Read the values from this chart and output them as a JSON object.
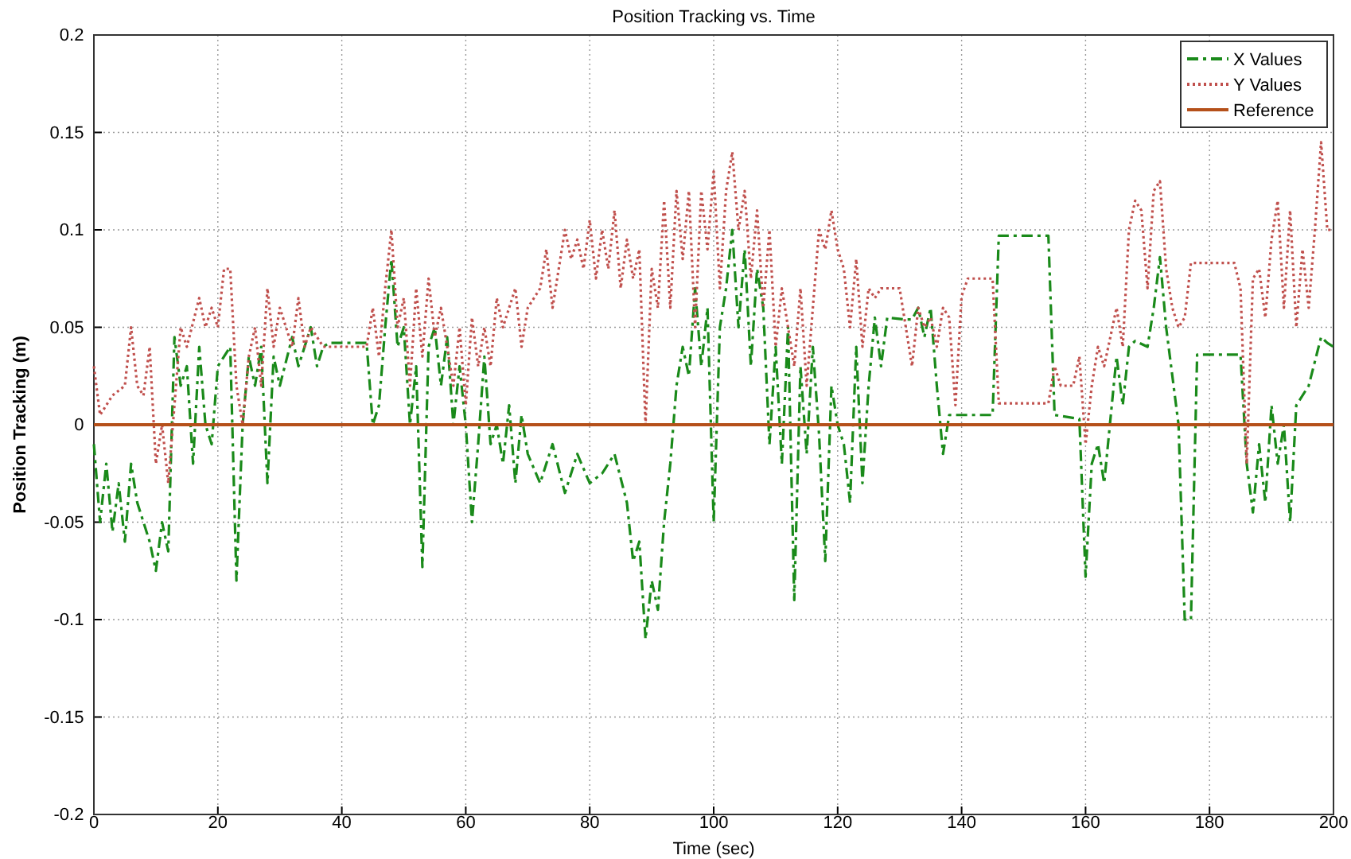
{
  "chart_data": {
    "type": "line",
    "title": "Position Tracking vs. Time",
    "xlabel": "Time (sec)",
    "ylabel": "Position Tracking (m)",
    "xlim": [
      0,
      200
    ],
    "ylim": [
      -0.2,
      0.2
    ],
    "xticks": [
      0,
      20,
      40,
      60,
      80,
      100,
      120,
      140,
      160,
      180,
      200
    ],
    "yticks": [
      -0.2,
      -0.15,
      -0.1,
      -0.05,
      0,
      0.05,
      0.1,
      0.15,
      0.2
    ],
    "grid": true,
    "legend": "top right",
    "series": [
      {
        "name": "X Values",
        "color": "#1a8a1a",
        "line_style": "dashed",
        "x": [
          0,
          1,
          2,
          3,
          4,
          5,
          6,
          7,
          8,
          9,
          10,
          11,
          12,
          13,
          14,
          15,
          16,
          17,
          18,
          19,
          20,
          22,
          23,
          24,
          25,
          26,
          27,
          28,
          29,
          30,
          32,
          33,
          35,
          36,
          37,
          38,
          44,
          45,
          46,
          47,
          48,
          49,
          50,
          51,
          52,
          53,
          54,
          55,
          56,
          57,
          58,
          59,
          60,
          61,
          62,
          63,
          64,
          65,
          66,
          67,
          68,
          69,
          70,
          72,
          74,
          76,
          78,
          80,
          82,
          84,
          86,
          87,
          88,
          89,
          90,
          91,
          92,
          93,
          94,
          95,
          96,
          97,
          98,
          99,
          100,
          101,
          102,
          103,
          104,
          105,
          106,
          107,
          108,
          109,
          110,
          111,
          112,
          113,
          114,
          115,
          116,
          117,
          118,
          119,
          120,
          121,
          122,
          123,
          124,
          125,
          126,
          127,
          128,
          131,
          132,
          133,
          134,
          135,
          136,
          137,
          138,
          139,
          145,
          146,
          154,
          155,
          159,
          160,
          161,
          162,
          163,
          165,
          166,
          167,
          168,
          170,
          171,
          172,
          173,
          175,
          176,
          177,
          178,
          185,
          186,
          187,
          188,
          189,
          190,
          191,
          192,
          193,
          194,
          196,
          198,
          199,
          200
        ],
        "values": [
          -0.01,
          -0.05,
          -0.02,
          -0.055,
          -0.03,
          -0.06,
          -0.02,
          -0.04,
          -0.05,
          -0.06,
          -0.075,
          -0.05,
          -0.065,
          0.045,
          0.02,
          0.03,
          -0.02,
          0.04,
          0.0,
          -0.01,
          0.03,
          0.04,
          -0.08,
          0.0,
          0.035,
          0.02,
          0.04,
          -0.03,
          0.035,
          0.02,
          0.045,
          0.03,
          0.05,
          0.03,
          0.04,
          0.042,
          0.042,
          0.0,
          0.01,
          0.05,
          0.085,
          0.04,
          0.05,
          0.0,
          0.03,
          -0.073,
          0.04,
          0.05,
          0.02,
          0.045,
          0.0,
          0.03,
          0.0,
          -0.05,
          -0.01,
          0.035,
          -0.01,
          0.0,
          -0.02,
          0.01,
          -0.03,
          0.005,
          -0.015,
          -0.03,
          -0.01,
          -0.035,
          -0.015,
          -0.03,
          -0.025,
          -0.015,
          -0.04,
          -0.07,
          -0.06,
          -0.11,
          -0.08,
          -0.095,
          -0.05,
          -0.02,
          0.02,
          0.04,
          0.025,
          0.07,
          0.03,
          0.06,
          -0.05,
          0.05,
          0.07,
          0.1,
          0.05,
          0.09,
          0.03,
          0.08,
          0.06,
          -0.01,
          0.04,
          -0.02,
          0.05,
          -0.09,
          0.03,
          -0.015,
          0.04,
          -0.005,
          -0.07,
          0.02,
          0.0,
          -0.01,
          -0.04,
          0.04,
          -0.03,
          0.02,
          0.055,
          0.03,
          0.055,
          0.054,
          0.054,
          0.06,
          0.045,
          0.06,
          0.02,
          -0.015,
          0.005,
          0.005,
          0.005,
          0.097,
          0.097,
          0.005,
          0.003,
          -0.078,
          -0.02,
          -0.01,
          -0.03,
          0.035,
          0.01,
          0.04,
          0.043,
          0.04,
          0.06,
          0.086,
          0.05,
          0.0,
          -0.1,
          -0.1,
          0.036,
          0.036,
          -0.02,
          -0.045,
          -0.01,
          -0.04,
          0.01,
          -0.02,
          0.0,
          -0.05,
          0.01,
          0.02,
          0.045,
          0.042,
          0.04
        ]
      },
      {
        "name": "Y Values",
        "color": "#c0504d",
        "line_style": "dotted",
        "x": [
          0,
          1,
          3,
          5,
          6,
          7,
          8,
          9,
          10,
          11,
          12,
          13,
          14,
          15,
          17,
          18,
          19,
          20,
          21,
          22,
          23,
          24,
          25,
          26,
          27,
          28,
          29,
          30,
          31,
          32,
          33,
          34,
          35,
          37,
          44,
          45,
          46,
          47,
          48,
          49,
          50,
          51,
          52,
          53,
          54,
          55,
          56,
          58,
          59,
          60,
          61,
          62,
          63,
          64,
          65,
          66,
          68,
          69,
          70,
          72,
          73,
          74,
          76,
          77,
          78,
          79,
          80,
          81,
          82,
          83,
          84,
          85,
          86,
          87,
          88,
          89,
          90,
          91,
          92,
          93,
          94,
          95,
          96,
          97,
          98,
          99,
          100,
          101,
          102,
          103,
          104,
          105,
          106,
          107,
          108,
          109,
          110,
          111,
          112,
          113,
          114,
          115,
          116,
          117,
          118,
          119,
          120,
          121,
          122,
          123,
          124,
          125,
          126,
          127,
          128,
          130,
          131,
          132,
          133,
          134,
          135,
          136,
          137,
          138,
          139,
          140,
          141,
          145,
          146,
          154,
          155,
          156,
          158,
          159,
          160,
          161,
          162,
          163,
          164,
          165,
          166,
          167,
          168,
          169,
          170,
          171,
          172,
          173,
          174,
          175,
          176,
          177,
          184,
          185,
          186,
          187,
          188,
          189,
          190,
          191,
          192,
          193,
          194,
          195,
          196,
          197,
          198,
          199,
          200
        ],
        "values": [
          0.03,
          0.005,
          0.015,
          0.02,
          0.05,
          0.02,
          0.015,
          0.04,
          -0.02,
          0.0,
          -0.03,
          0.01,
          0.05,
          0.04,
          0.065,
          0.05,
          0.06,
          0.05,
          0.08,
          0.08,
          0.02,
          0.0,
          0.035,
          0.05,
          0.02,
          0.07,
          0.04,
          0.06,
          0.05,
          0.04,
          0.065,
          0.04,
          0.05,
          0.04,
          0.04,
          0.06,
          0.035,
          0.07,
          0.1,
          0.05,
          0.065,
          0.02,
          0.07,
          0.035,
          0.075,
          0.045,
          0.06,
          0.02,
          0.05,
          0.01,
          0.055,
          0.03,
          0.05,
          0.03,
          0.065,
          0.05,
          0.07,
          0.04,
          0.06,
          0.07,
          0.09,
          0.06,
          0.1,
          0.085,
          0.095,
          0.08,
          0.105,
          0.075,
          0.1,
          0.08,
          0.11,
          0.07,
          0.095,
          0.075,
          0.09,
          0.0,
          0.08,
          0.06,
          0.115,
          0.06,
          0.12,
          0.085,
          0.12,
          0.05,
          0.12,
          0.09,
          0.13,
          0.07,
          0.12,
          0.14,
          0.1,
          0.12,
          0.075,
          0.11,
          0.06,
          0.1,
          0.04,
          0.07,
          0.05,
          0.03,
          0.07,
          0.02,
          0.06,
          0.1,
          0.09,
          0.11,
          0.09,
          0.08,
          0.05,
          0.085,
          0.04,
          0.07,
          0.065,
          0.07,
          0.07,
          0.07,
          0.05,
          0.03,
          0.06,
          0.05,
          0.055,
          0.04,
          0.06,
          0.055,
          0.01,
          0.066,
          0.075,
          0.075,
          0.011,
          0.011,
          0.03,
          0.02,
          0.02,
          0.035,
          -0.01,
          0.02,
          0.04,
          0.03,
          0.045,
          0.06,
          0.04,
          0.1,
          0.115,
          0.11,
          0.07,
          0.12,
          0.125,
          0.08,
          0.06,
          0.05,
          0.055,
          0.083,
          0.083,
          0.07,
          -0.02,
          0.075,
          0.08,
          0.055,
          0.095,
          0.115,
          0.06,
          0.11,
          0.05,
          0.09,
          0.06,
          0.1,
          0.145,
          0.1,
          0.1
        ]
      },
      {
        "name": "Reference",
        "color": "#b5501a",
        "line_style": "solid",
        "x": [
          0,
          200
        ],
        "values": [
          0,
          0
        ]
      }
    ]
  }
}
